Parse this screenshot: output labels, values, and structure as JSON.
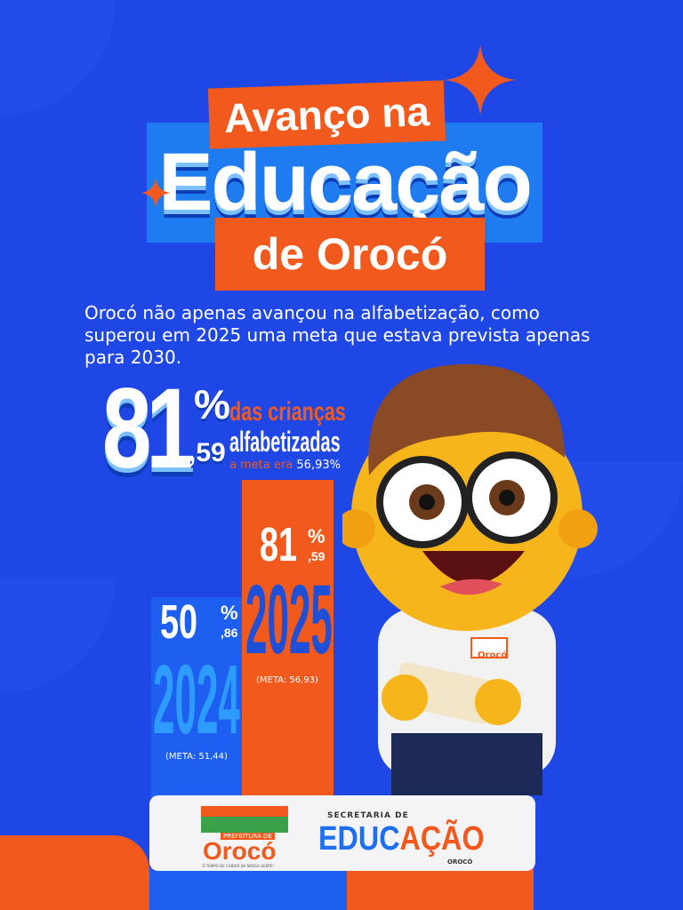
{
  "title": {
    "line1": "Avanço na",
    "line2": "Educação",
    "line3": "de Orocó"
  },
  "intro": "Orocó não apenas avançou na alfabetização, como superou em 2025 uma meta que estava prevista apenas para 2030.",
  "highlight": {
    "integer": "81",
    "percent": "%",
    "decimal": ",59",
    "label1": "das crianças",
    "label2": "alfabetizadas",
    "meta_prefix": "a meta era",
    "meta_value": "56,93%"
  },
  "bars": [
    {
      "year": "2024",
      "int": "50",
      "dec": ",86",
      "meta": "(META: 51,44)"
    },
    {
      "year": "2025",
      "int": "81",
      "dec": ",59",
      "meta": "(META: 56,93)"
    }
  ],
  "footer": {
    "logo1_top": "PREFEITURA DE",
    "logo1_name": "Orocó",
    "logo1_slogan": "É TEMPO DE CUIDAR DA NOSSA GENTE!",
    "logo2_top": "SECRETARIA DE",
    "logo2_a": "EDUC",
    "logo2_b": "AÇÃO",
    "logo2_sub": "OROCÓ"
  },
  "mascot_badge": "Orocó",
  "colors": {
    "background": "#1f47e6",
    "orange": "#f15a1c",
    "light_blue": "#1e7cf0"
  },
  "chart_data": {
    "type": "bar",
    "categories": [
      "2024",
      "2025"
    ],
    "values": [
      50.86,
      81.59
    ],
    "targets": [
      51.44,
      56.93
    ],
    "title": "",
    "xlabel": "",
    "ylabel": "",
    "ylim": [
      0,
      100
    ]
  }
}
